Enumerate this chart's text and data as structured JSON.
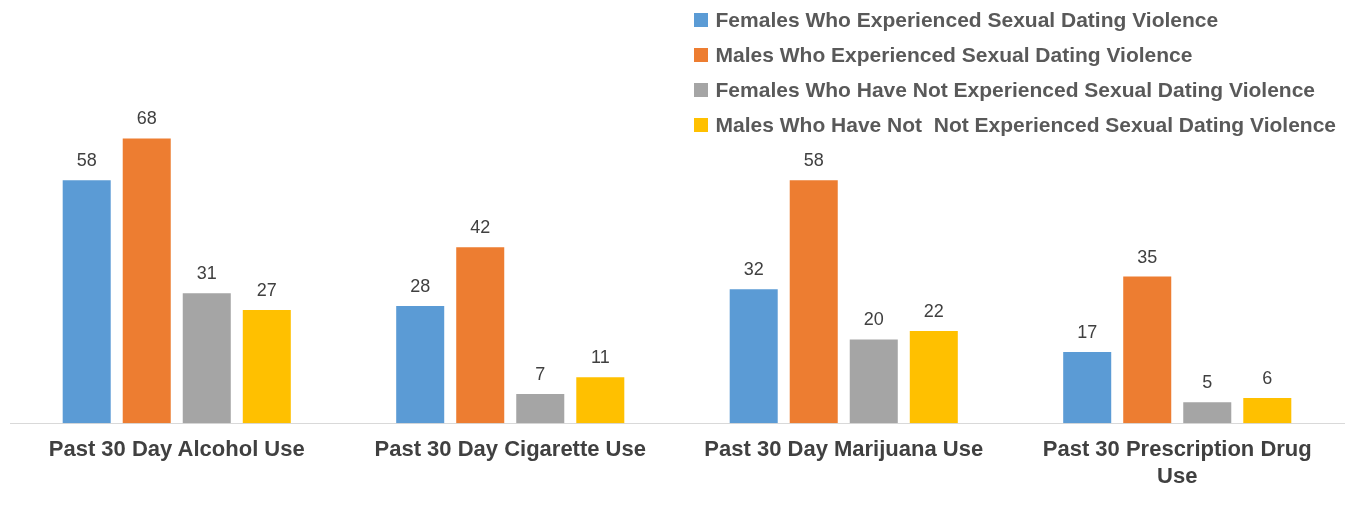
{
  "chart_data": {
    "type": "bar",
    "categories": [
      "Past 30 Day Alcohol Use",
      "Past 30 Day Cigarette Use",
      "Past 30 Day Marijuana Use",
      "Past 30 Prescription Drug Use"
    ],
    "series": [
      {
        "name": "Females Who Experienced Sexual Dating Violence",
        "color": "#5b9bd5",
        "values": [
          58,
          28,
          32,
          17
        ]
      },
      {
        "name": "Males Who Experienced Sexual Dating Violence",
        "color": "#ed7d31",
        "values": [
          68,
          42,
          58,
          35
        ]
      },
      {
        "name": "Females Who Have Not Experienced Sexual Dating Violence",
        "color": "#a5a5a5",
        "values": [
          31,
          7,
          20,
          5
        ]
      },
      {
        "name": "Males Who Have Not  Not Experienced Sexual Dating Violence",
        "color": "#ffc000",
        "values": [
          27,
          11,
          22,
          6
        ]
      }
    ],
    "data_labels": true,
    "legend": "top right",
    "grid": false
  }
}
